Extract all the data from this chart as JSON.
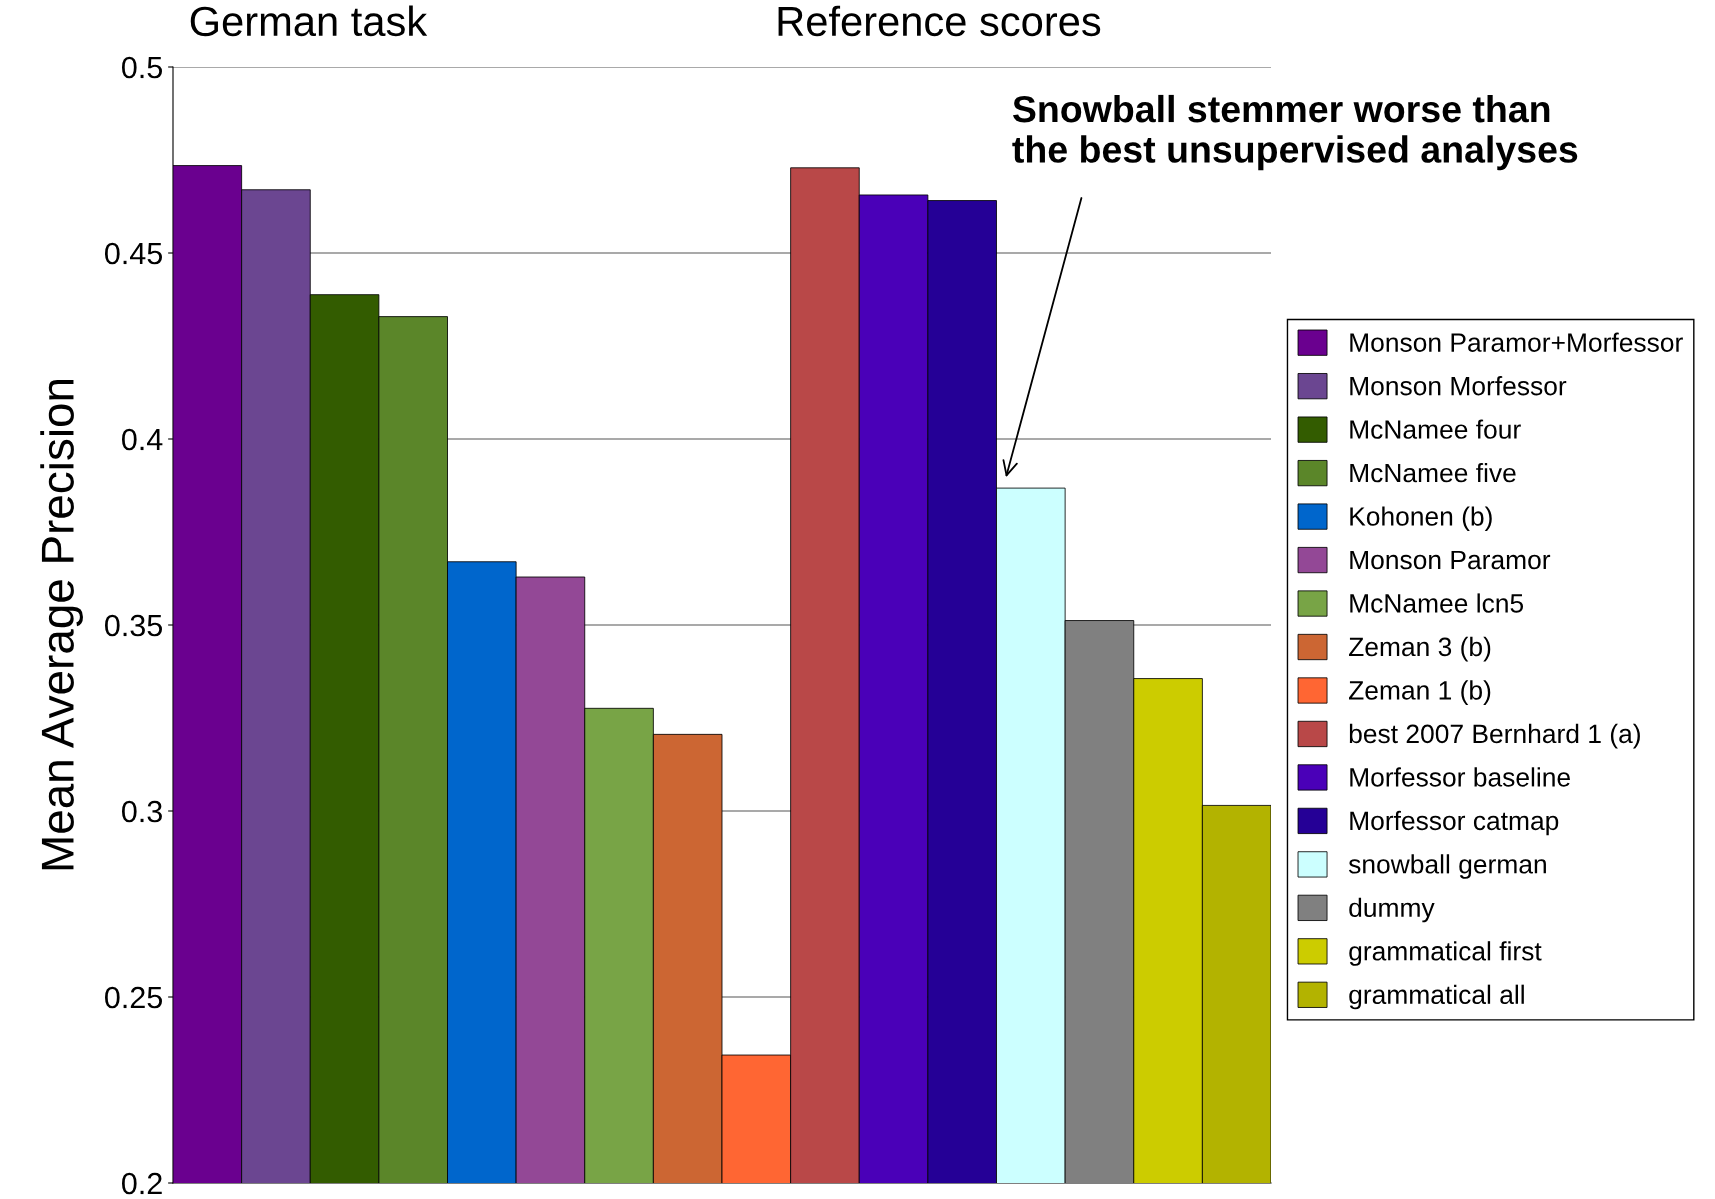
{
  "chart_data": {
    "type": "bar",
    "ylabel": "Mean Average Precision",
    "categories": [
      null,
      null,
      null,
      null,
      null,
      null,
      null,
      null,
      null,
      null,
      null,
      null,
      null,
      null,
      null,
      null
    ],
    "series": [
      {
        "name": "Monson Paramor+Morfessor",
        "color": "#6a008f",
        "values": [
          0.4735,
          null,
          null,
          null,
          null,
          null,
          null,
          null,
          null,
          null,
          null,
          null,
          null,
          null,
          null,
          null
        ]
      },
      {
        "name": "Monson Morfessor",
        "color": "#6b4691",
        "values": [
          null,
          0.467,
          null,
          null,
          null,
          null,
          null,
          null,
          null,
          null,
          null,
          null,
          null,
          null,
          null,
          null
        ]
      },
      {
        "name": "McNamee four",
        "color": "#335c00",
        "values": [
          null,
          null,
          0.4388,
          null,
          null,
          null,
          null,
          null,
          null,
          null,
          null,
          null,
          null,
          null,
          null,
          null
        ]
      },
      {
        "name": "McNamee five",
        "color": "#5b8629",
        "values": [
          null,
          null,
          null,
          0.4329,
          null,
          null,
          null,
          null,
          null,
          null,
          null,
          null,
          null,
          null,
          null,
          null
        ]
      },
      {
        "name": "Kohonen (b)",
        "color": "#0066cc",
        "values": [
          null,
          null,
          null,
          null,
          0.367,
          null,
          null,
          null,
          null,
          null,
          null,
          null,
          null,
          null,
          null,
          null
        ]
      },
      {
        "name": "Monson Paramor",
        "color": "#934896",
        "values": [
          null,
          null,
          null,
          null,
          null,
          0.3629,
          null,
          null,
          null,
          null,
          null,
          null,
          null,
          null,
          null,
          null
        ]
      },
      {
        "name": "McNamee lcn5",
        "color": "#78a446",
        "values": [
          null,
          null,
          null,
          null,
          null,
          null,
          0.3276,
          null,
          null,
          null,
          null,
          null,
          null,
          null,
          null,
          null
        ]
      },
      {
        "name": "Zeman 3 (b)",
        "color": "#cc6633",
        "values": [
          null,
          null,
          null,
          null,
          null,
          null,
          null,
          0.3206,
          null,
          null,
          null,
          null,
          null,
          null,
          null,
          null
        ]
      },
      {
        "name": "Zeman 1 (b)",
        "color": "#ff6633",
        "values": [
          null,
          null,
          null,
          null,
          null,
          null,
          null,
          null,
          0.2344,
          null,
          null,
          null,
          null,
          null,
          null,
          null
        ]
      },
      {
        "name": "best 2007 Bernhard 1 (a)",
        "color": "#b94848",
        "values": [
          null,
          null,
          null,
          null,
          null,
          null,
          null,
          null,
          null,
          0.4729,
          null,
          null,
          null,
          null,
          null,
          null
        ]
      },
      {
        "name": "Morfessor baseline",
        "color": "#4a00b8",
        "values": [
          null,
          null,
          null,
          null,
          null,
          null,
          null,
          null,
          null,
          null,
          0.4656,
          null,
          null,
          null,
          null,
          null
        ]
      },
      {
        "name": "Morfessor catmap",
        "color": "#250096",
        "values": [
          null,
          null,
          null,
          null,
          null,
          null,
          null,
          null,
          null,
          null,
          null,
          0.4641,
          null,
          null,
          null,
          null
        ]
      },
      {
        "name": "snowball german",
        "color": "#ccffff",
        "values": [
          null,
          null,
          null,
          null,
          null,
          null,
          null,
          null,
          null,
          null,
          null,
          null,
          0.3868,
          null,
          null,
          null
        ]
      },
      {
        "name": "dummy",
        "color": "#808080",
        "values": [
          null,
          null,
          null,
          null,
          null,
          null,
          null,
          null,
          null,
          null,
          null,
          null,
          null,
          0.3512,
          null,
          null
        ]
      },
      {
        "name": "grammatical first",
        "color": "#cccc00",
        "values": [
          null,
          null,
          null,
          null,
          null,
          null,
          null,
          null,
          null,
          null,
          null,
          null,
          null,
          null,
          0.3356,
          null
        ]
      },
      {
        "name": "grammatical all",
        "color": "#b3b300",
        "values": [
          null,
          null,
          null,
          null,
          null,
          null,
          null,
          null,
          null,
          null,
          null,
          null,
          null,
          null,
          null,
          0.3015
        ]
      }
    ],
    "ylim": [
      0.2,
      0.5
    ],
    "yticks": [
      {
        "value": 0.2,
        "label": "0.2"
      },
      {
        "value": 0.25,
        "label": "0.25"
      },
      {
        "value": 0.3,
        "label": "0.3"
      },
      {
        "value": 0.35,
        "label": "0.35"
      },
      {
        "value": 0.4,
        "label": "0.4"
      },
      {
        "value": 0.45,
        "label": "0.45"
      },
      {
        "value": 0.5,
        "label": "0.5"
      }
    ],
    "grid": "y",
    "legend": "right",
    "tick_labels": "y",
    "annotations": [
      "German task",
      "Reference scores",
      "Snowball stemmer worse than\nthe best unsupervised analyses"
    ]
  }
}
